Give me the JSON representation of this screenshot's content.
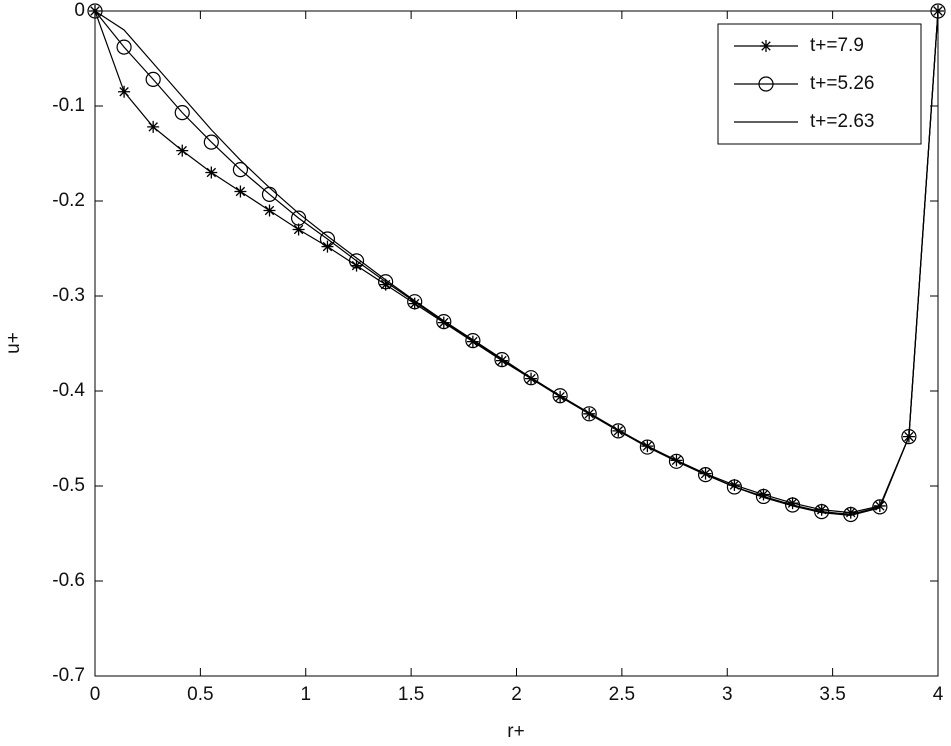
{
  "chart_data": {
    "type": "line",
    "xlabel": "r+",
    "ylabel": "u+",
    "x": [
      0,
      0.138,
      0.276,
      0.414,
      0.552,
      0.69,
      0.828,
      0.966,
      1.103,
      1.241,
      1.379,
      1.517,
      1.655,
      1.793,
      1.931,
      2.069,
      2.207,
      2.345,
      2.483,
      2.621,
      2.759,
      2.897,
      3.034,
      3.172,
      3.31,
      3.448,
      3.586,
      3.724,
      3.862,
      4.0
    ],
    "series": [
      {
        "name": "t+=7.9",
        "color": "#000000",
        "marker": "star",
        "values": [
          0,
          -0.085,
          -0.122,
          -0.147,
          -0.17,
          -0.19,
          -0.21,
          -0.23,
          -0.248,
          -0.268,
          -0.288,
          -0.308,
          -0.328,
          -0.348,
          -0.368,
          -0.387,
          -0.406,
          -0.424,
          -0.442,
          -0.458,
          -0.473,
          -0.487,
          -0.499,
          -0.509,
          -0.518,
          -0.525,
          -0.528,
          -0.521,
          -0.448,
          0
        ]
      },
      {
        "name": "t+=5.26",
        "color": "#000000",
        "marker": "circle",
        "values": [
          0,
          -0.038,
          -0.072,
          -0.107,
          -0.138,
          -0.167,
          -0.193,
          -0.218,
          -0.24,
          -0.263,
          -0.285,
          -0.306,
          -0.327,
          -0.347,
          -0.367,
          -0.386,
          -0.405,
          -0.424,
          -0.442,
          -0.459,
          -0.474,
          -0.488,
          -0.501,
          -0.511,
          -0.52,
          -0.527,
          -0.53,
          -0.522,
          -0.448,
          0
        ]
      },
      {
        "name": "t+=2.63",
        "color": "#000000",
        "marker": "none",
        "values": [
          0,
          -0.02,
          -0.055,
          -0.09,
          -0.125,
          -0.157,
          -0.186,
          -0.213,
          -0.237,
          -0.26,
          -0.283,
          -0.305,
          -0.326,
          -0.346,
          -0.366,
          -0.386,
          -0.405,
          -0.423,
          -0.441,
          -0.458,
          -0.474,
          -0.488,
          -0.501,
          -0.512,
          -0.521,
          -0.528,
          -0.531,
          -0.523,
          -0.448,
          0
        ]
      }
    ],
    "xlim": [
      0,
      4
    ],
    "xticks": [
      0,
      0.5,
      1,
      1.5,
      2,
      2.5,
      3,
      3.5,
      4
    ],
    "ylim": [
      -0.7,
      0
    ],
    "yticks": [
      0,
      -0.1,
      -0.2,
      -0.3,
      -0.4,
      -0.5,
      -0.6,
      -0.7
    ],
    "grid": false,
    "legend": "upper right"
  }
}
